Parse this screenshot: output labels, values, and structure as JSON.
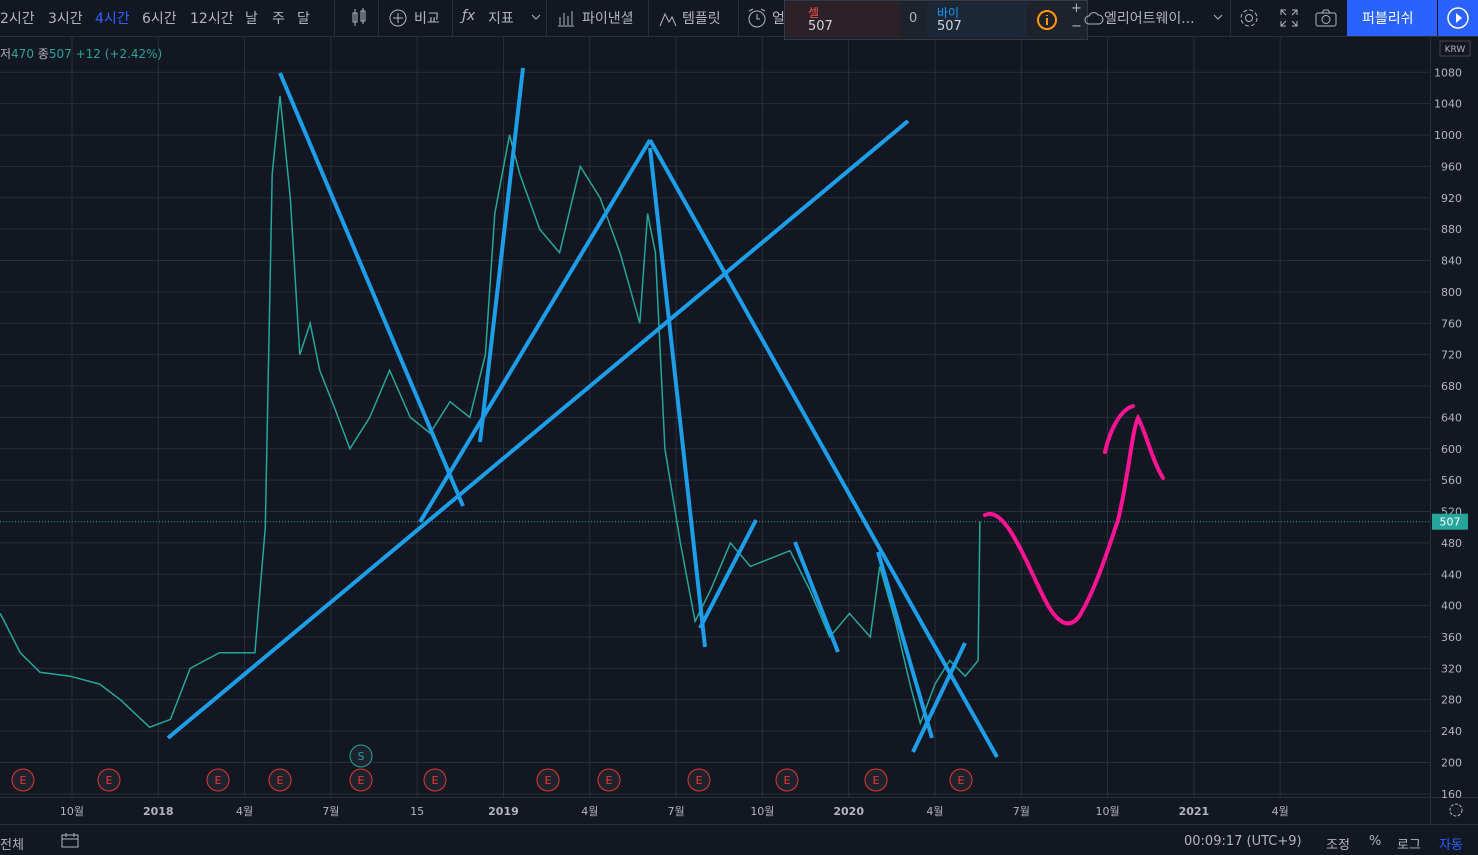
{
  "toolbar": {
    "intervals": [
      "2시간",
      "3시간",
      "4시간",
      "6시간",
      "12시간",
      "날",
      "주",
      "달"
    ],
    "active_interval": 2,
    "compare": "비교",
    "indicators": "지표",
    "financials": "파이낸셜",
    "templates": "템플릿",
    "alert": "얼",
    "sell_label": "셀",
    "sell_price": "507",
    "spread": "0",
    "buy_label": "바이",
    "buy_price": "507",
    "layout_name": "엘리어트웨이...",
    "publish": "퍼블리쉬"
  },
  "legend": {
    "low_label": "저",
    "low": "470",
    "close_label": "종",
    "close": "507",
    "change": "+12 (+2.42%)"
  },
  "currency": "KRW",
  "events": [
    "E",
    "E",
    "E",
    "E",
    "E",
    "E",
    "E",
    "E",
    "E",
    "E",
    "E",
    "E"
  ],
  "split_marker": "S",
  "bottom_bar": {
    "range": "전체",
    "clock": "00:09:17 (UTC+9)",
    "adjust": "조정",
    "percent": "%",
    "log": "로그",
    "auto": "자동"
  },
  "chart_data": {
    "type": "line",
    "color": "#26a69a",
    "x": [
      -0.83,
      -0.6,
      -0.37,
      -0.02,
      0.32,
      0.56,
      0.9,
      1.14,
      1.37,
      1.71,
      2.12,
      2.24,
      2.32,
      2.41,
      2.53,
      2.64,
      2.76,
      2.87,
      3.05,
      3.22,
      3.45,
      3.68,
      3.92,
      4.15,
      4.38,
      4.61,
      4.79,
      4.9,
      5.07,
      5.19,
      5.42,
      5.65,
      5.89,
      6.12,
      6.35,
      6.58,
      6.67,
      6.76,
      6.87,
      7.05,
      7.22,
      7.4,
      7.63,
      7.86,
      8.09,
      8.32,
      8.55,
      8.78,
      9.01,
      9.25,
      9.36,
      9.54,
      9.71,
      9.83,
      10.0,
      10.17,
      10.35,
      10.5,
      10.52
    ],
    "values": [
      390,
      340,
      315,
      310,
      300,
      280,
      245,
      255,
      320,
      340,
      340,
      500,
      950,
      1050,
      920,
      720,
      760,
      700,
      650,
      600,
      640,
      700,
      640,
      620,
      660,
      640,
      720,
      900,
      1000,
      950,
      880,
      850,
      960,
      920,
      850,
      760,
      900,
      850,
      600,
      480,
      380,
      420,
      480,
      450,
      460,
      470,
      420,
      360,
      390,
      360,
      450,
      380,
      300,
      250,
      300,
      330,
      310,
      330,
      507
    ],
    "last_value": 507,
    "xlim": [
      -0.834,
      15.736
    ],
    "xticks": [
      {
        "value": 0,
        "label": "10월"
      },
      {
        "value": 1,
        "label": "2018"
      },
      {
        "value": 2,
        "label": "4월"
      },
      {
        "value": 3,
        "label": "7월"
      },
      {
        "value": 4,
        "label": "15"
      },
      {
        "value": 5,
        "label": "2019"
      },
      {
        "value": 6,
        "label": "4월"
      },
      {
        "value": 7,
        "label": "7월"
      },
      {
        "value": 8,
        "label": "10월"
      },
      {
        "value": 9,
        "label": "2020"
      },
      {
        "value": 10,
        "label": "4월"
      },
      {
        "value": 11,
        "label": "7월"
      },
      {
        "value": 12,
        "label": "10월"
      },
      {
        "value": 13,
        "label": "2021"
      },
      {
        "value": 14,
        "label": "4월"
      }
    ],
    "ylim": [
      156,
      1125
    ],
    "yticks": [
      160,
      200,
      240,
      280,
      320,
      360,
      400,
      440,
      480,
      520,
      560,
      600,
      640,
      680,
      720,
      760,
      800,
      840,
      880,
      920,
      960,
      1000,
      1040,
      1080
    ],
    "grid": true
  }
}
